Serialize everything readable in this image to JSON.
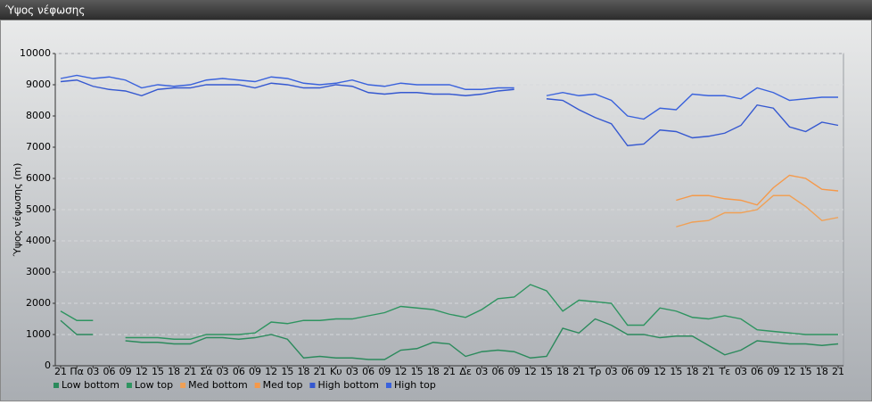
{
  "chart_data": {
    "type": "line",
    "title": "Ύψος νέφωσης",
    "y_label": "Ύψος νέφωσης (m)",
    "categories": [
      "21",
      "Πα",
      "03",
      "06",
      "09",
      "12",
      "15",
      "18",
      "21",
      "Σά",
      "03",
      "06",
      "09",
      "12",
      "15",
      "18",
      "21",
      "Κυ",
      "03",
      "06",
      "09",
      "12",
      "15",
      "18",
      "21",
      "Δε",
      "03",
      "06",
      "09",
      "12",
      "15",
      "18",
      "21",
      "Τρ",
      "03",
      "06",
      "09",
      "12",
      "15",
      "18",
      "21",
      "Τε",
      "03",
      "06",
      "09",
      "12",
      "15",
      "18",
      "21"
    ],
    "series": [
      {
        "name": "Low bottom",
        "color": "#2b8a5c",
        "values": [
          1450,
          1000,
          1000,
          null,
          800,
          750,
          750,
          700,
          700,
          900,
          900,
          850,
          900,
          1000,
          850,
          250,
          300,
          250,
          250,
          200,
          200,
          500,
          550,
          750,
          700,
          300,
          450,
          500,
          450,
          250,
          300,
          1200,
          1050,
          1500,
          1300,
          1000,
          1000,
          900,
          950,
          950,
          650,
          350,
          500,
          800,
          750,
          700,
          700,
          650,
          700
        ]
      },
      {
        "name": "Low top",
        "color": "#2e9460",
        "values": [
          1750,
          1450,
          1450,
          null,
          900,
          900,
          900,
          850,
          850,
          1000,
          1000,
          1000,
          1050,
          1400,
          1350,
          1450,
          1450,
          1500,
          1500,
          1600,
          1700,
          1900,
          1850,
          1800,
          1650,
          1550,
          1800,
          2150,
          2200,
          2600,
          2400,
          1750,
          2100,
          2050,
          2000,
          1300,
          1300,
          1850,
          1750,
          1550,
          1500,
          1600,
          1500,
          1150,
          1100,
          1050,
          1000,
          1000,
          1000
        ]
      },
      {
        "name": "Med bottom",
        "color": "#f0a055",
        "values": [
          null,
          null,
          null,
          null,
          null,
          null,
          null,
          null,
          null,
          null,
          null,
          null,
          null,
          null,
          null,
          null,
          null,
          null,
          null,
          null,
          null,
          null,
          null,
          null,
          null,
          null,
          null,
          null,
          null,
          null,
          null,
          null,
          null,
          null,
          null,
          null,
          null,
          null,
          4450,
          4600,
          4650,
          4900,
          4900,
          5000,
          5450,
          5450,
          5100,
          4650,
          4750
        ]
      },
      {
        "name": "Med top",
        "color": "#f5994a",
        "values": [
          null,
          null,
          null,
          null,
          null,
          null,
          null,
          null,
          null,
          null,
          null,
          null,
          null,
          null,
          null,
          null,
          null,
          null,
          null,
          null,
          null,
          null,
          null,
          null,
          null,
          null,
          null,
          null,
          null,
          null,
          null,
          null,
          null,
          null,
          null,
          null,
          null,
          null,
          5300,
          5450,
          5450,
          5350,
          5300,
          5150,
          5700,
          6100,
          6000,
          5650,
          5600
        ]
      },
      {
        "name": "High bottom",
        "color": "#3558d0",
        "values": [
          9100,
          9150,
          8950,
          8850,
          8800,
          8650,
          8850,
          8900,
          8900,
          9000,
          9000,
          9000,
          8900,
          9050,
          9000,
          8900,
          8900,
          9000,
          8950,
          8750,
          8700,
          8750,
          8750,
          8700,
          8700,
          8650,
          8700,
          8800,
          8850,
          null,
          8550,
          8500,
          8200,
          7950,
          7750,
          7050,
          7100,
          7550,
          7500,
          7300,
          7350,
          7450,
          7700,
          8350,
          8250,
          7650,
          7500,
          7800,
          7700
        ]
      },
      {
        "name": "High top",
        "color": "#3a62dc",
        "values": [
          9200,
          9300,
          9200,
          9250,
          9150,
          8900,
          9000,
          8950,
          9000,
          9150,
          9200,
          9150,
          9100,
          9250,
          9200,
          9050,
          9000,
          9050,
          9150,
          9000,
          8950,
          9050,
          9000,
          9000,
          9000,
          8850,
          8850,
          8900,
          8900,
          null,
          8650,
          8750,
          8650,
          8700,
          8500,
          8000,
          7900,
          8250,
          8200,
          8700,
          8650,
          8650,
          8550,
          8900,
          8750,
          8500,
          8550,
          8600,
          8600
        ]
      }
    ],
    "ylim": [
      0,
      10000
    ],
    "yticks": [
      0,
      1000,
      2000,
      3000,
      4000,
      5000,
      6000,
      7000,
      8000,
      9000,
      10000
    ],
    "grid": true
  }
}
